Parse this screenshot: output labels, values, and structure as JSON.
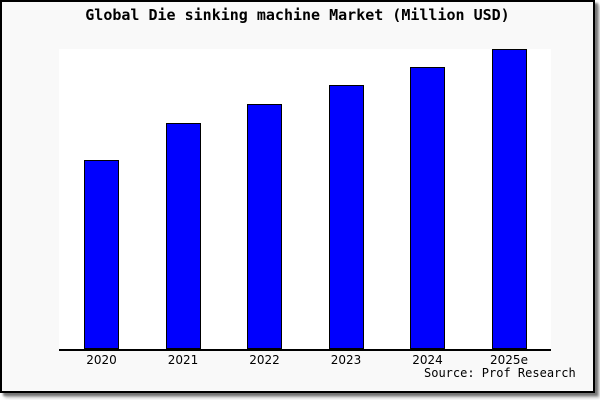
{
  "frame": {
    "background": "#f9f9f9",
    "border_color": "#000000",
    "shadow_color": "#8a8a8a",
    "plot_background": "#ffffff",
    "axis_color": "#000000"
  },
  "chart_data": {
    "type": "bar",
    "title": "Global Die sinking machine Market (Million USD)",
    "categories": [
      "2020",
      "2021",
      "2022",
      "2023",
      "2024",
      "2025e"
    ],
    "values": [
      63,
      75.3,
      81.8,
      88,
      94,
      100
    ],
    "values_note": "y-axis is unlabeled; values are relative bar heights scaled so 2025e = 100",
    "xlabel": "",
    "ylabel": "",
    "ylim": [
      0,
      100
    ],
    "grid": false,
    "legend": false,
    "bar_color": "#0000fe",
    "bar_border_color": "#000000",
    "source_note": "Source: Prof Research"
  }
}
